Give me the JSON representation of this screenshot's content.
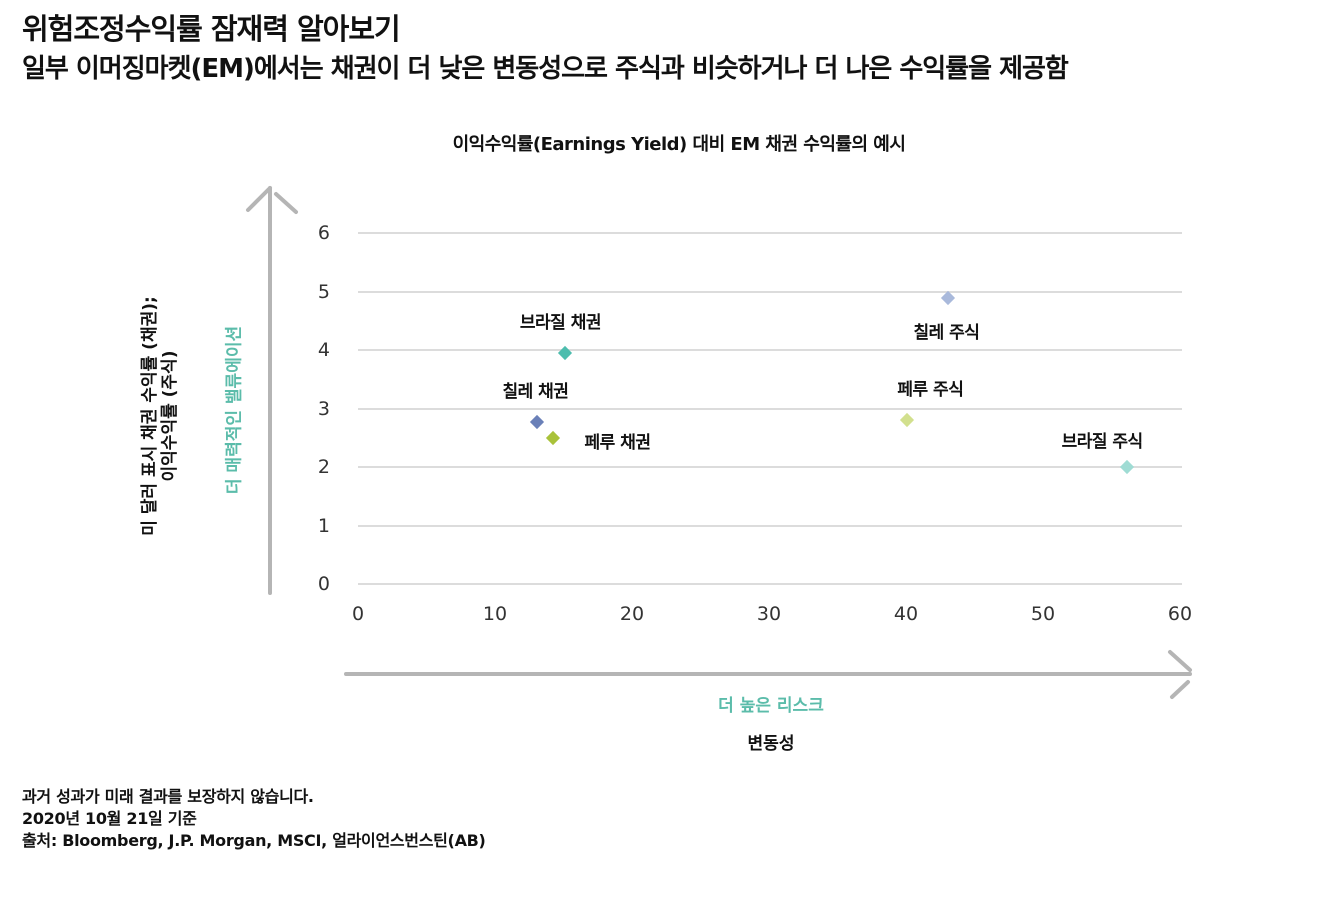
{
  "header": {
    "title": "위험조정수익률 잠재력 알아보기",
    "subtitle": "일부 이머징마켓(EM)에서는 채권이 더 낮은 변동성으로 주식과 비슷하거나 더 나은 수익률을 제공함"
  },
  "colors": {
    "accent_teal": "#5bbcaa",
    "axis_arrow": "#b5b5b5",
    "gridline": "#dcdcdc"
  },
  "chart_data": {
    "type": "scatter",
    "title": "이익수익률(Earnings Yield) 대비 EM 채권 수익률의 예시",
    "xlabel": "변동성",
    "ylabel": "미 달러 표시 채권 수익률 (채권); 이익수익률 (주식)",
    "x_annotation": "더 높은 리스크",
    "y_annotation": "더 매력적인 밸류에이션",
    "xlim": [
      0,
      60
    ],
    "ylim": [
      0,
      6
    ],
    "x_ticks": [
      "0",
      "10",
      "20",
      "30",
      "40",
      "50",
      "60"
    ],
    "y_ticks": [
      "0",
      "1",
      "2",
      "3",
      "4",
      "5",
      "6"
    ],
    "grid": "horizontal",
    "legend": "none",
    "points": [
      {
        "label": "브라질 채권",
        "x": 15.1,
        "y": 3.95,
        "color": "#4dbdae"
      },
      {
        "label": "칠레 채권",
        "x": 13.1,
        "y": 2.77,
        "color": "#6a80b8"
      },
      {
        "label": "페루 채권",
        "x": 14.2,
        "y": 2.5,
        "color": "#a9c23a"
      },
      {
        "label": "칠레 주식",
        "x": 43.1,
        "y": 4.89,
        "color": "#a9b9db"
      },
      {
        "label": "페루 주식",
        "x": 40.1,
        "y": 2.8,
        "color": "#d2e08e"
      },
      {
        "label": "브라질 주식",
        "x": 56.1,
        "y": 2.0,
        "color": "#9fdcd4"
      }
    ]
  },
  "footer": {
    "disclaimer": "과거 성과가 미래 결과를 보장하지 않습니다.",
    "as_of": "2020년 10월 21일 기준",
    "source": "출처: Bloomberg, J.P. Morgan, MSCI, 얼라이언스번스틴(AB)"
  }
}
